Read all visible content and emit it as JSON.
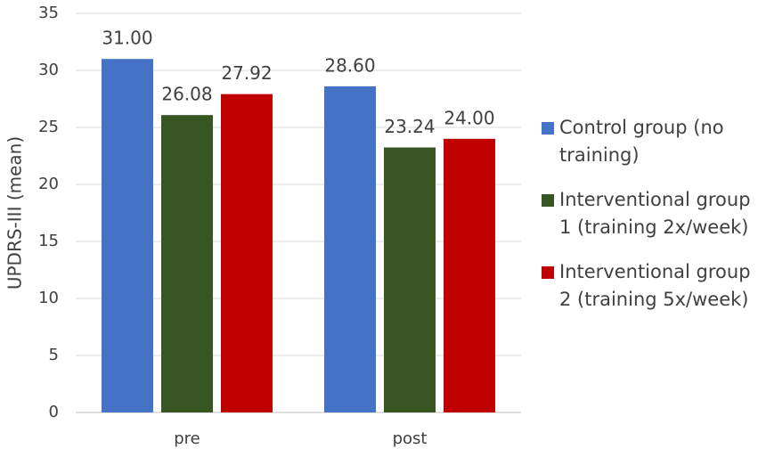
{
  "chart_data": {
    "type": "bar",
    "ylabel": "UPDRS-III (mean)",
    "categories": [
      "pre",
      "post"
    ],
    "series": [
      {
        "name": "Control group (no training)",
        "color": "#4472c4",
        "values": [
          31,
          28.6
        ],
        "value_labels": [
          "31.00",
          "28.60"
        ]
      },
      {
        "name": "Interventional group 1 (training 2x/week)",
        "color": "#375623",
        "values": [
          26.08,
          23.24
        ],
        "value_labels": [
          "26.08",
          "23.24"
        ]
      },
      {
        "name": "Interventional group 2 (training 5x/week)",
        "color": "#c00000",
        "values": [
          27.92,
          24
        ],
        "value_labels": [
          "27.92",
          "24.00"
        ]
      }
    ],
    "ylim": [
      0,
      35
    ],
    "yticks": [
      0,
      5,
      10,
      15,
      20,
      25,
      30,
      35
    ],
    "grid": true,
    "legend": "right"
  }
}
